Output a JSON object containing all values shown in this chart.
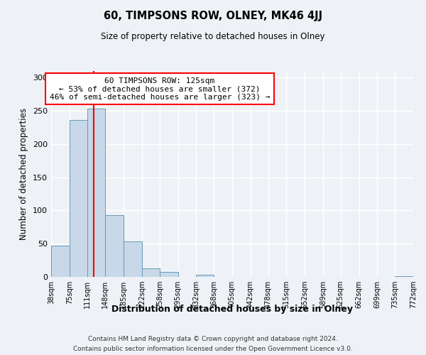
{
  "title": "60, TIMPSONS ROW, OLNEY, MK46 4JJ",
  "subtitle": "Size of property relative to detached houses in Olney",
  "xlabel": "Distribution of detached houses by size in Olney",
  "ylabel": "Number of detached properties",
  "bin_edges": [
    38,
    75,
    111,
    148,
    185,
    222,
    258,
    295,
    332,
    368,
    405,
    442,
    478,
    515,
    552,
    589,
    625,
    662,
    699,
    735,
    772
  ],
  "bin_labels": [
    "38sqm",
    "75sqm",
    "111sqm",
    "148sqm",
    "185sqm",
    "222sqm",
    "258sqm",
    "295sqm",
    "332sqm",
    "368sqm",
    "405sqm",
    "442sqm",
    "478sqm",
    "515sqm",
    "552sqm",
    "589sqm",
    "625sqm",
    "662sqm",
    "699sqm",
    "735sqm",
    "772sqm"
  ],
  "counts": [
    47,
    236,
    253,
    93,
    53,
    13,
    8,
    0,
    3,
    0,
    0,
    0,
    0,
    0,
    0,
    0,
    0,
    0,
    0,
    1
  ],
  "bar_color": "#c8d8e8",
  "bar_edge_color": "#6699bb",
  "vline_x": 125,
  "vline_color": "red",
  "annotation_title": "60 TIMPSONS ROW: 125sqm",
  "annotation_line1": "← 53% of detached houses are smaller (372)",
  "annotation_line2": "46% of semi-detached houses are larger (323) →",
  "annotation_box_color": "white",
  "annotation_box_edge": "red",
  "ylim": [
    0,
    310
  ],
  "yticks": [
    0,
    50,
    100,
    150,
    200,
    250,
    300
  ],
  "footer1": "Contains HM Land Registry data © Crown copyright and database right 2024.",
  "footer2": "Contains public sector information licensed under the Open Government Licence v3.0.",
  "bg_color": "#eef2f6"
}
